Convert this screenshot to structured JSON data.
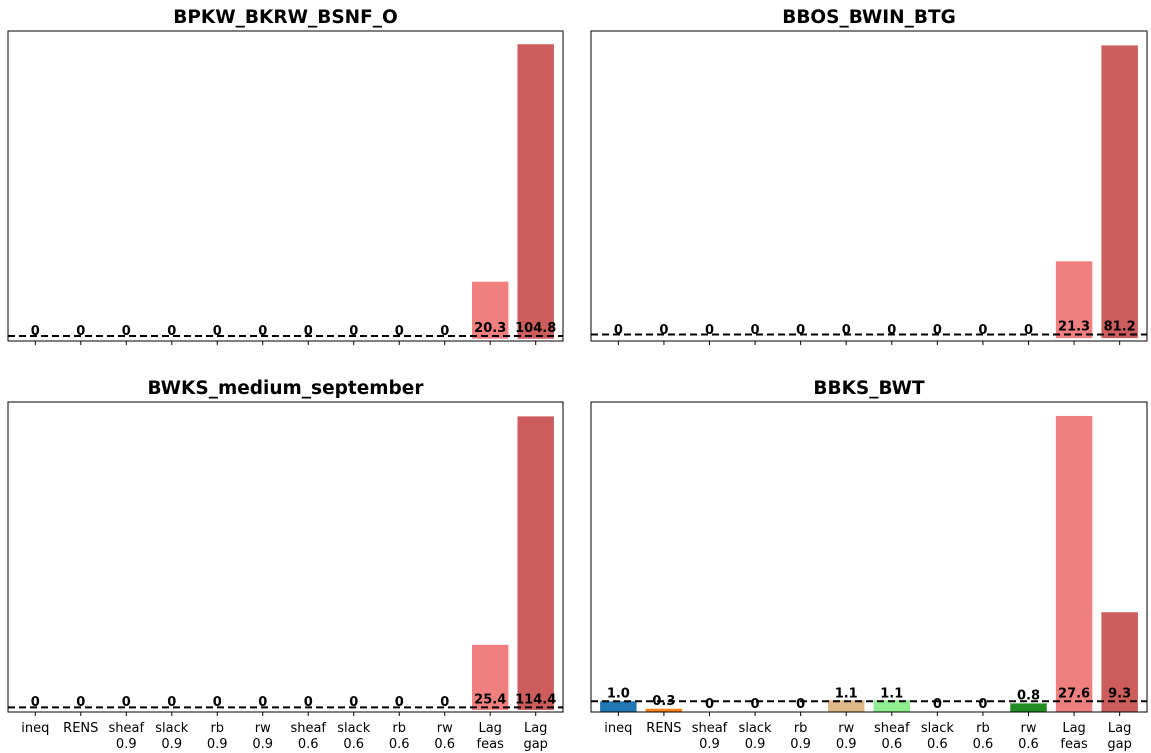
{
  "chart_data": [
    {
      "type": "bar",
      "title": "BPKW_BKRW_BSNF_O",
      "categories": [
        [
          "ineq"
        ],
        [
          "RENS"
        ],
        [
          "sheaf",
          "0.9"
        ],
        [
          "slack",
          "0.9"
        ],
        [
          "rb",
          "0.9"
        ],
        [
          "rw",
          "0.9"
        ],
        [
          "sheaf",
          "0.6"
        ],
        [
          "slack",
          "0.6"
        ],
        [
          "rb",
          "0.6"
        ],
        [
          "rw",
          "0.6"
        ],
        [
          "Lag",
          "feas"
        ],
        [
          "Lag",
          "gap"
        ]
      ],
      "values": [
        0,
        0,
        0,
        0,
        0,
        0,
        0,
        0,
        0,
        0,
        20.3,
        104.8
      ],
      "labels": [
        "0",
        "0",
        "0",
        "0",
        "0",
        "0",
        "0",
        "0",
        "0",
        "0",
        "20.3",
        "104.8"
      ],
      "colors": [
        "#1f77b4",
        "#ff7f0e",
        "#ffe4b5",
        "#dda0dd",
        "#87ceeb",
        "#deb887",
        "#90ee90",
        "#ffb6c1",
        "#b0e0e6",
        "#228b22",
        "#f08080",
        "#cd5c5c"
      ],
      "reference_line": 1,
      "ylim": [
        -0.8,
        109.5
      ],
      "show_tick_labels": false,
      "ylabel": ""
    },
    {
      "type": "bar",
      "title": "BBOS_BWIN_BTG",
      "categories": [
        [
          "ineq"
        ],
        [
          "RENS"
        ],
        [
          "sheaf",
          "0.9"
        ],
        [
          "slack",
          "0.9"
        ],
        [
          "rb",
          "0.9"
        ],
        [
          "rw",
          "0.9"
        ],
        [
          "sheaf",
          "0.6"
        ],
        [
          "slack",
          "0.6"
        ],
        [
          "rb",
          "0.6"
        ],
        [
          "rw",
          "0.6"
        ],
        [
          "Lag",
          "feas"
        ],
        [
          "Lag",
          "gap"
        ]
      ],
      "values": [
        0,
        0,
        0,
        0,
        0,
        0,
        0,
        0,
        0,
        0,
        21.3,
        81.2
      ],
      "labels": [
        "0",
        "0",
        "0",
        "0",
        "0",
        "0",
        "0",
        "0",
        "0",
        "0",
        "21.3",
        "81.2"
      ],
      "colors": [
        "#1f77b4",
        "#ff7f0e",
        "#ffe4b5",
        "#dda0dd",
        "#87ceeb",
        "#deb887",
        "#90ee90",
        "#ffb6c1",
        "#b0e0e6",
        "#228b22",
        "#f08080",
        "#cd5c5c"
      ],
      "reference_line": 1,
      "ylim": [
        -0.8,
        85.2
      ],
      "show_tick_labels": false,
      "ylabel": ""
    },
    {
      "type": "bar",
      "title": "BWKS_medium_september",
      "categories": [
        [
          "ineq"
        ],
        [
          "RENS"
        ],
        [
          "sheaf",
          "0.9"
        ],
        [
          "slack",
          "0.9"
        ],
        [
          "rb",
          "0.9"
        ],
        [
          "rw",
          "0.9"
        ],
        [
          "sheaf",
          "0.6"
        ],
        [
          "slack",
          "0.6"
        ],
        [
          "rb",
          "0.6"
        ],
        [
          "rw",
          "0.6"
        ],
        [
          "Lag",
          "feas"
        ],
        [
          "Lag",
          "gap"
        ]
      ],
      "values": [
        0,
        0,
        0,
        0,
        0,
        0,
        0,
        0,
        0,
        0,
        25.4,
        114.4
      ],
      "labels": [
        "0",
        "0",
        "0",
        "0",
        "0",
        "0",
        "0",
        "0",
        "0",
        "0",
        "25.4",
        "114.4"
      ],
      "colors": [
        "#1f77b4",
        "#ff7f0e",
        "#ffe4b5",
        "#dda0dd",
        "#87ceeb",
        "#deb887",
        "#90ee90",
        "#ffb6c1",
        "#b0e0e6",
        "#228b22",
        "#f08080",
        "#cd5c5c"
      ],
      "reference_line": 1,
      "ylim": [
        -0.8,
        120
      ],
      "show_tick_labels": true,
      "ylabel": ""
    },
    {
      "type": "bar",
      "title": "BBKS_BWT",
      "categories": [
        [
          "ineq"
        ],
        [
          "RENS"
        ],
        [
          "sheaf",
          "0.9"
        ],
        [
          "slack",
          "0.9"
        ],
        [
          "rb",
          "0.9"
        ],
        [
          "rw",
          "0.9"
        ],
        [
          "sheaf",
          "0.6"
        ],
        [
          "slack",
          "0.6"
        ],
        [
          "rb",
          "0.6"
        ],
        [
          "rw",
          "0.6"
        ],
        [
          "Lag",
          "feas"
        ],
        [
          "Lag",
          "gap"
        ]
      ],
      "values": [
        1.0,
        0.3,
        0,
        0,
        0,
        1.1,
        1.1,
        0,
        0,
        0.8,
        27.6,
        9.3
      ],
      "labels": [
        "1.0",
        "0.3",
        "0",
        "0",
        "0",
        "1.1",
        "1.1",
        "0",
        "0",
        "0.8",
        "27.6",
        "9.3"
      ],
      "colors": [
        "#1f77b4",
        "#ff7f0e",
        "#ffe4b5",
        "#dda0dd",
        "#87ceeb",
        "#deb887",
        "#90ee90",
        "#ffb6c1",
        "#b0e0e6",
        "#228b22",
        "#f08080",
        "#cd5c5c"
      ],
      "reference_line": 1,
      "ylim": [
        0,
        28.9
      ],
      "show_tick_labels": true,
      "ylabel": ""
    }
  ]
}
